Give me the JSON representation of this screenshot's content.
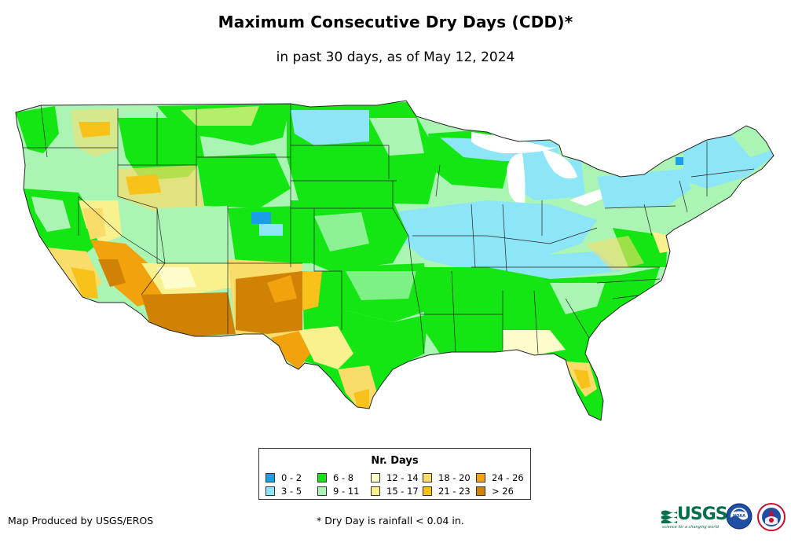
{
  "title": "Maximum Consecutive Dry Days (CDD)*",
  "subtitle": "in past 30 days, as of May 12, 2024",
  "legend": {
    "title": "Nr. Days",
    "items": [
      {
        "label": "0 - 2",
        "color": "#1a9fe6"
      },
      {
        "label": "3 - 5",
        "color": "#8ce6f7"
      },
      {
        "label": "6 - 8",
        "color": "#14e614"
      },
      {
        "label": "9 - 11",
        "color": "#aaf5b4"
      },
      {
        "label": "12 - 14",
        "color": "#fdfdcc"
      },
      {
        "label": "15 - 17",
        "color": "#f9f18e"
      },
      {
        "label": "18 - 20",
        "color": "#f9dc6a"
      },
      {
        "label": "21 - 23",
        "color": "#f8c21a"
      },
      {
        "label": "24 - 26",
        "color": "#f2a20c"
      },
      {
        "label": "> 26",
        "color": "#cf8203"
      }
    ]
  },
  "footer": {
    "credit": "Map Produced by USGS/EROS",
    "note": "* Dry Day is rainfall < 0.04 in."
  },
  "logos": {
    "usgs": "USGS",
    "usgs_tagline": "science for a changing world",
    "noaa": "NOAA"
  }
}
